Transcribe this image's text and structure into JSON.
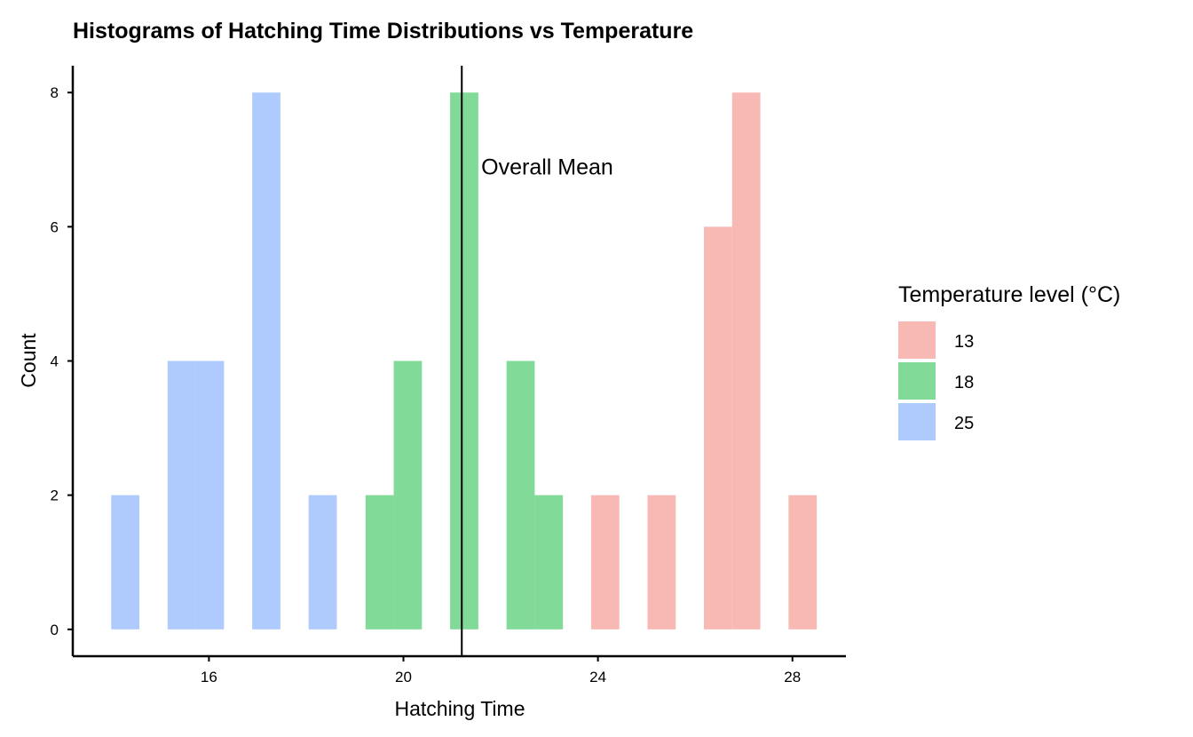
{
  "chart_data": {
    "type": "bar",
    "title": "Histograms of Hatching Time Distributions vs Temperature",
    "xlabel": "Hatching Time",
    "ylabel": "Count",
    "xlim": [
      13.2,
      29.1
    ],
    "ylim": [
      -0.4,
      8.4
    ],
    "x_ticks": [
      16,
      20,
      24,
      28
    ],
    "y_ticks": [
      0,
      2,
      4,
      6,
      8
    ],
    "bin_width": 0.58,
    "legend": {
      "title": "Temperature level (°C)",
      "placement": "right"
    },
    "series": [
      {
        "name": "13",
        "color": "#F8B8B4",
        "bins": [
          {
            "x": 23.86,
            "count": 2
          },
          {
            "x": 25.02,
            "count": 2
          },
          {
            "x": 26.18,
            "count": 6
          },
          {
            "x": 26.76,
            "count": 8
          },
          {
            "x": 27.92,
            "count": 2
          }
        ]
      },
      {
        "name": "18",
        "color": "#82DA99",
        "bins": [
          {
            "x": 19.22,
            "count": 2
          },
          {
            "x": 19.8,
            "count": 4
          },
          {
            "x": 20.96,
            "count": 8
          },
          {
            "x": 22.12,
            "count": 4
          },
          {
            "x": 22.7,
            "count": 2
          }
        ]
      },
      {
        "name": "25",
        "color": "#AFCBFE",
        "bins": [
          {
            "x": 13.99,
            "count": 2
          },
          {
            "x": 15.15,
            "count": 4
          },
          {
            "x": 15.73,
            "count": 4
          },
          {
            "x": 16.89,
            "count": 8
          },
          {
            "x": 18.05,
            "count": 2
          }
        ]
      }
    ],
    "vline": {
      "x": 21.2,
      "label": "Overall Mean"
    },
    "annotation": {
      "text": "Overall Mean",
      "x": 21.6,
      "y": 6.9
    },
    "grid": false
  }
}
